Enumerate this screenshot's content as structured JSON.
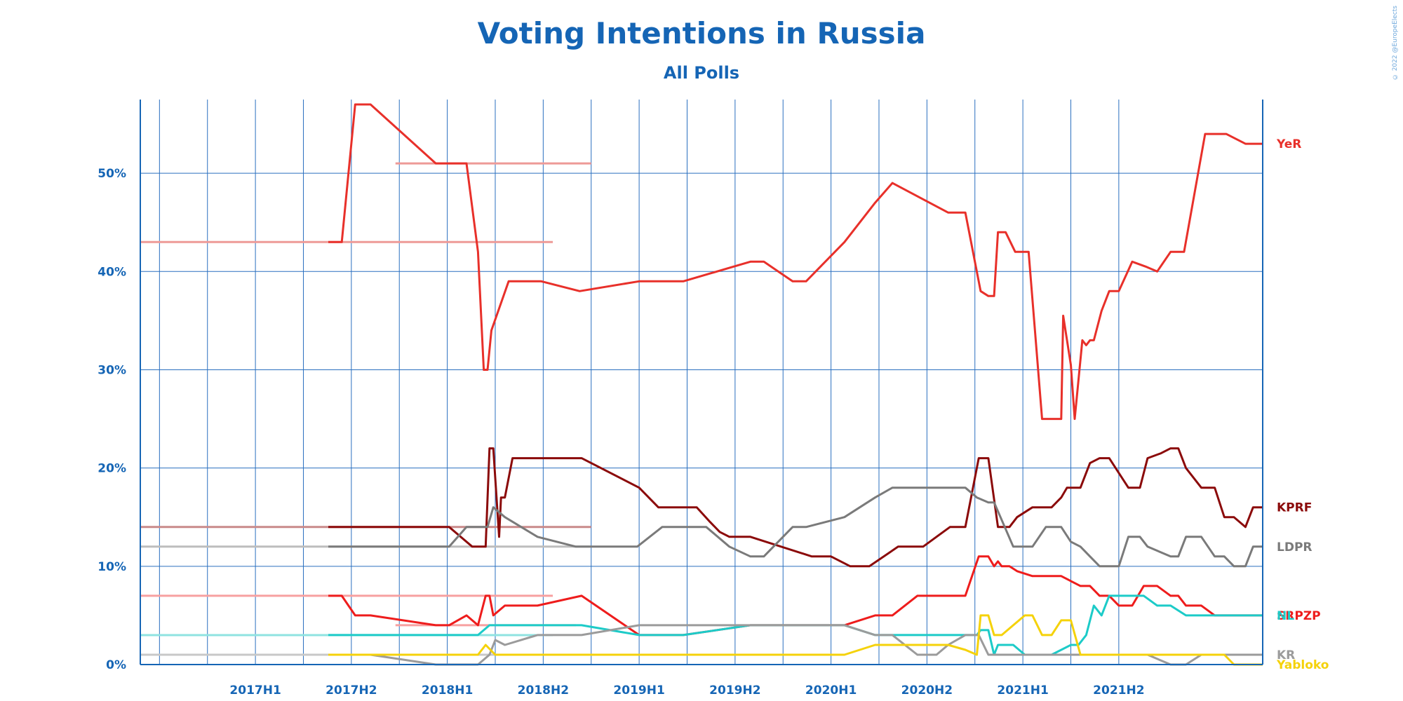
{
  "header": {
    "title": "Voting Intentions in Russia",
    "subtitle": "All Polls",
    "credit": "© 2022 @EuropeElects"
  },
  "colors": {
    "axis": "#1565b5",
    "grid": "#2a6fbf",
    "text": "#1565b5",
    "background": "#ffffff"
  },
  "chart_data": {
    "type": "line",
    "title": "Voting Intentions in Russia",
    "subtitle": "All Polls",
    "x_unit": "half-year",
    "xlim": [
      2016.65,
      2022.5
    ],
    "ylim": [
      0,
      57.5
    ],
    "grid": true,
    "legend_placement": "right end labels",
    "x_ticks": [
      {
        "label": "2017H1",
        "value": 2017.0
      },
      {
        "label": "2017H2",
        "value": 2017.5
      },
      {
        "label": "2018H1",
        "value": 2018.0
      },
      {
        "label": "2018H2",
        "value": 2018.5
      },
      {
        "label": "2019H1",
        "value": 2019.0
      },
      {
        "label": "2019H2",
        "value": 2019.5
      },
      {
        "label": "2020H1",
        "value": 2020.0
      },
      {
        "label": "2020H2",
        "value": 2020.5
      },
      {
        "label": "2021H1",
        "value": 2021.0
      },
      {
        "label": "2021H2",
        "value": 2021.5
      }
    ],
    "y_ticks": [
      {
        "label": "0%",
        "value": 0
      },
      {
        "label": "10%",
        "value": 10
      },
      {
        "label": "20%",
        "value": 20
      },
      {
        "label": "30%",
        "value": 30
      },
      {
        "label": "40%",
        "value": 40
      },
      {
        "label": "50%",
        "value": 50
      }
    ],
    "series": [
      {
        "name": "YeR",
        "color": "#e8302a",
        "label_y": 53,
        "x": [
          2017.63,
          2017.7,
          2017.77,
          2017.85,
          2018.19,
          2018.26,
          2018.35,
          2018.41,
          2018.44,
          2018.45,
          2018.46,
          2018.48,
          2018.57,
          2018.74,
          2018.94,
          2019.25,
          2019.48,
          2019.83,
          2019.9,
          2020.05,
          2020.12,
          2020.32,
          2020.48,
          2020.57,
          2020.86,
          2020.95,
          2021.03,
          2021.07,
          2021.1,
          2021.12,
          2021.16,
          2021.21,
          2021.28,
          2021.35,
          2021.4,
          2021.45,
          2021.46,
          2021.5,
          2021.52,
          2021.56,
          2021.58,
          2021.6,
          2021.62,
          2021.66,
          2021.7,
          2021.75,
          2021.82,
          2021.89,
          2021.95,
          2022.02,
          2022.09,
          2022.2,
          2022.24,
          2022.31,
          2022.41,
          2022.45,
          2022.5
        ],
        "y": [
          43,
          43,
          57,
          57,
          51,
          51,
          51,
          42,
          30,
          30,
          30,
          34,
          39,
          39,
          38,
          39,
          39,
          41,
          41,
          39,
          39,
          43,
          47,
          49,
          46,
          46,
          38,
          37.5,
          37.5,
          44,
          44,
          42,
          42,
          25,
          25,
          25,
          35.5,
          30.5,
          25,
          33,
          32.5,
          33,
          33,
          36,
          38,
          38,
          41,
          40.5,
          40,
          42,
          42,
          54,
          54,
          54,
          53,
          53,
          53
        ]
      },
      {
        "name": "KPRF",
        "color": "#8b0a0a",
        "label_y": 16,
        "x": [
          2017.63,
          2017.85,
          2018.19,
          2018.26,
          2018.38,
          2018.45,
          2018.47,
          2018.49,
          2018.52,
          2018.53,
          2018.55,
          2018.59,
          2018.72,
          2018.95,
          2019.25,
          2019.35,
          2019.55,
          2019.62,
          2019.67,
          2019.72,
          2019.83,
          2020.15,
          2020.25,
          2020.35,
          2020.45,
          2020.6,
          2020.7,
          2020.73,
          2020.8,
          2020.87,
          2020.95,
          2021.02,
          2021.07,
          2021.12,
          2021.18,
          2021.22,
          2021.3,
          2021.35,
          2021.4,
          2021.45,
          2021.48,
          2021.55,
          2021.6,
          2021.65,
          2021.7,
          2021.8,
          2021.86,
          2021.9,
          2021.97,
          2022.02,
          2022.06,
          2022.1,
          2022.18,
          2022.25,
          2022.3,
          2022.35,
          2022.41,
          2022.45,
          2022.5
        ],
        "y": [
          14,
          14,
          14,
          14,
          12,
          12,
          22,
          22,
          13,
          17,
          17,
          21,
          21,
          21,
          18,
          16,
          16,
          14.5,
          13.5,
          13,
          13,
          11,
          11,
          10,
          10,
          12,
          12,
          12,
          13,
          14,
          14,
          21,
          21,
          14,
          14,
          15,
          16,
          16,
          16,
          17,
          18,
          18,
          20.5,
          21,
          21,
          18,
          18,
          21,
          21.5,
          22,
          22,
          20,
          18,
          18,
          15,
          15,
          14,
          16,
          16
        ]
      },
      {
        "name": "LDPR",
        "color": "#7a7a7a",
        "label_y": 12,
        "x": [
          2017.63,
          2017.85,
          2018.19,
          2018.26,
          2018.35,
          2018.41,
          2018.46,
          2018.49,
          2018.55,
          2018.72,
          2018.92,
          2019.24,
          2019.37,
          2019.48,
          2019.6,
          2019.72,
          2019.83,
          2019.9,
          2020.05,
          2020.12,
          2020.32,
          2020.48,
          2020.57,
          2020.8,
          2020.86,
          2020.95,
          2021.01,
          2021.07,
          2021.1,
          2021.2,
          2021.3,
          2021.37,
          2021.45,
          2021.5,
          2021.55,
          2021.6,
          2021.65,
          2021.75,
          2021.8,
          2021.86,
          2021.9,
          2022.02,
          2022.06,
          2022.1,
          2022.18,
          2022.25,
          2022.3,
          2022.35,
          2022.41,
          2022.45,
          2022.5
        ],
        "y": [
          12,
          12,
          12,
          12,
          14,
          14,
          14,
          16,
          15,
          13,
          12,
          12,
          14,
          14,
          14,
          12,
          11,
          11,
          14,
          14,
          15,
          17,
          18,
          18,
          18,
          18,
          17,
          16.5,
          16.5,
          12,
          12,
          14,
          14,
          12.5,
          12,
          11,
          10,
          10,
          13,
          13,
          12,
          11,
          11,
          13,
          13,
          11,
          11,
          10,
          10,
          12,
          12
        ]
      },
      {
        "name": "SRPZP",
        "color": "#ee1c1c",
        "label_y": 5,
        "x": [
          2017.63,
          2017.7,
          2017.77,
          2017.85,
          2018.19,
          2018.26,
          2018.35,
          2018.41,
          2018.45,
          2018.47,
          2018.49,
          2018.55,
          2018.72,
          2018.95,
          2019.25,
          2019.48,
          2019.83,
          2020.15,
          2020.32,
          2020.48,
          2020.57,
          2020.7,
          2020.95,
          2021.02,
          2021.07,
          2021.1,
          2021.12,
          2021.14,
          2021.18,
          2021.22,
          2021.3,
          2021.35,
          2021.4,
          2021.45,
          2021.5,
          2021.55,
          2021.6,
          2021.65,
          2021.7,
          2021.75,
          2021.82,
          2021.88,
          2021.95,
          2022.02,
          2022.06,
          2022.1,
          2022.18,
          2022.25,
          2022.3,
          2022.35,
          2022.41,
          2022.45,
          2022.5
        ],
        "y": [
          7,
          7,
          5,
          5,
          4,
          4,
          5,
          4,
          7,
          7,
          5,
          6,
          6,
          7,
          3,
          3,
          4,
          4,
          4,
          5,
          5,
          7,
          7,
          11,
          11,
          10,
          10.5,
          10,
          10,
          9.5,
          9,
          9,
          9,
          9,
          8.5,
          8,
          8,
          7,
          7,
          6,
          6,
          8,
          8,
          7,
          7,
          6,
          6,
          5,
          5,
          5,
          5,
          5,
          5
        ]
      },
      {
        "name": "NL",
        "color": "#1ccbc8",
        "label_y": 5,
        "x": [
          2017.63,
          2017.85,
          2018.19,
          2018.26,
          2018.35,
          2018.41,
          2018.47,
          2018.51,
          2018.55,
          2018.72,
          2018.95,
          2019.25,
          2019.48,
          2019.83,
          2020.15,
          2020.32,
          2020.48,
          2020.57,
          2020.8,
          2020.86,
          2020.95,
          2021.01,
          2021.03,
          2021.07,
          2021.1,
          2021.12,
          2021.15,
          2021.2,
          2021.26,
          2021.3,
          2021.4,
          2021.5,
          2021.54,
          2021.58,
          2021.62,
          2021.66,
          2021.7,
          2021.75,
          2021.82,
          2021.88,
          2021.95,
          2022.02,
          2022.1,
          2022.18,
          2022.25,
          2022.3,
          2022.35,
          2022.41,
          2022.45,
          2022.5
        ],
        "y": [
          3,
          3,
          3,
          3,
          3,
          3,
          4,
          4,
          4,
          4,
          4,
          3,
          3,
          4,
          4,
          4,
          3,
          3,
          3,
          3,
          3,
          3,
          3.5,
          3.5,
          1,
          2,
          2,
          2,
          1,
          1,
          1,
          2,
          2,
          3,
          6,
          5,
          7,
          7,
          7,
          7,
          6,
          6,
          5,
          5,
          5,
          5,
          5,
          5,
          5,
          5
        ]
      },
      {
        "name": "KR",
        "color": "#9b9b9b",
        "label_y": 1,
        "x": [
          2017.63,
          2017.85,
          2018.19,
          2018.26,
          2018.35,
          2018.41,
          2018.47,
          2018.5,
          2018.55,
          2018.72,
          2018.95,
          2019.25,
          2019.48,
          2019.83,
          2020.15,
          2020.32,
          2020.48,
          2020.57,
          2020.7,
          2020.8,
          2020.86,
          2020.95,
          2021.02,
          2021.07,
          2021.1,
          2021.2,
          2021.3,
          2021.4,
          2021.5,
          2021.6,
          2021.7,
          2021.8,
          2021.9,
          2022.02,
          2022.1,
          2022.18,
          2022.25,
          2022.3,
          2022.35,
          2022.41,
          2022.45,
          2022.5
        ],
        "y": [
          1,
          1,
          0,
          0,
          0,
          0,
          1,
          2.5,
          2,
          3,
          3,
          4,
          4,
          4,
          4,
          4,
          3,
          3,
          1,
          1,
          2,
          3,
          3,
          1,
          1,
          1,
          1,
          1,
          1,
          1,
          1,
          1,
          1,
          0,
          0,
          1,
          1,
          1,
          1,
          1,
          1,
          1
        ]
      },
      {
        "name": "Yabloko",
        "color": "#f5d20a",
        "label_y": 0,
        "x": [
          2017.63,
          2017.85,
          2018.19,
          2018.26,
          2018.35,
          2018.41,
          2018.45,
          2018.5,
          2018.55,
          2018.72,
          2018.95,
          2019.25,
          2019.48,
          2019.83,
          2020.15,
          2020.32,
          2020.48,
          2020.57,
          2020.8,
          2020.86,
          2020.95,
          2021.01,
          2021.03,
          2021.07,
          2021.1,
          2021.14,
          2021.2,
          2021.26,
          2021.3,
          2021.35,
          2021.4,
          2021.45,
          2021.5,
          2021.55,
          2021.6,
          2021.65,
          2021.7,
          2021.8,
          2021.9,
          2022.02,
          2022.1,
          2022.18,
          2022.25,
          2022.3,
          2022.35,
          2022.41,
          2022.45,
          2022.5
        ],
        "y": [
          1,
          1,
          1,
          1,
          1,
          1,
          2,
          1,
          1,
          1,
          1,
          1,
          1,
          1,
          1,
          1,
          2,
          2,
          2,
          2,
          1.5,
          1,
          5,
          5,
          3,
          3,
          4,
          5,
          5,
          3,
          3,
          4.5,
          4.5,
          1,
          1,
          1,
          1,
          1,
          1,
          1,
          1,
          1,
          1,
          1,
          0,
          0,
          0,
          0
        ]
      }
    ],
    "baselines": [
      {
        "color": "#ee9a97",
        "x": [
          2016.65,
          2018.8
        ],
        "y": 43
      },
      {
        "color": "#ee9a97",
        "x": [
          2017.98,
          2019.0
        ],
        "y": 51
      },
      {
        "color": "#c98a8a",
        "x": [
          2016.65,
          2019.0
        ],
        "y": 14
      },
      {
        "color": "#bdbdbd",
        "x": [
          2016.65,
          2019.0
        ],
        "y": 12
      },
      {
        "color": "#f7a0a0",
        "x": [
          2016.65,
          2018.8
        ],
        "y": 7
      },
      {
        "color": "#f7a0a0",
        "x": [
          2017.98,
          2018.92
        ],
        "y": 4
      },
      {
        "color": "#8fe3e1",
        "x": [
          2016.65,
          2018.8
        ],
        "y": 3
      },
      {
        "color": "#f7e27a",
        "x": [
          2016.65,
          2018.8
        ],
        "y": 1
      },
      {
        "color": "#c8c8c8",
        "x": [
          2016.65,
          2018.8
        ],
        "y": 1
      }
    ]
  }
}
